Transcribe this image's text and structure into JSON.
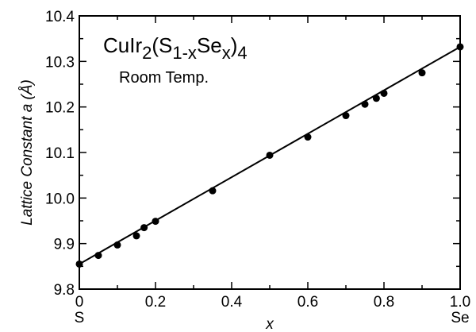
{
  "chart_data": {
    "type": "scatter",
    "xlabel": "x",
    "ylabel": "Lattice Constant  a (Å)",
    "xlim": [
      0,
      1.0
    ],
    "ylim": [
      9.8,
      10.4
    ],
    "x_ticks": [
      "0",
      "0.2",
      "0.4",
      "0.6",
      "0.8",
      "1.0"
    ],
    "y_ticks": [
      "9.8",
      "9.9",
      "10.0",
      "10.1",
      "10.2",
      "10.3",
      "10.4"
    ],
    "x_end_labels": {
      "left": "S",
      "right": "Se"
    },
    "annotation": {
      "formula": {
        "base": "CuIr",
        "s1": "2",
        "open": "(S",
        "s2": "1-x",
        "mid": "Se",
        "s3": "x",
        "close": ")",
        "s4": "4"
      },
      "condition": "Room Temp."
    },
    "series": [
      {
        "points": [
          {
            "x": 0.0,
            "y": 9.855
          },
          {
            "x": 0.05,
            "y": 9.874
          },
          {
            "x": 0.1,
            "y": 9.897
          },
          {
            "x": 0.15,
            "y": 9.917
          },
          {
            "x": 0.17,
            "y": 9.935
          },
          {
            "x": 0.2,
            "y": 9.949
          },
          {
            "x": 0.35,
            "y": 10.016
          },
          {
            "x": 0.5,
            "y": 10.094
          },
          {
            "x": 0.6,
            "y": 10.134
          },
          {
            "x": 0.7,
            "y": 10.181
          },
          {
            "x": 0.75,
            "y": 10.206
          },
          {
            "x": 0.78,
            "y": 10.219
          },
          {
            "x": 0.8,
            "y": 10.23
          },
          {
            "x": 0.9,
            "y": 10.275
          },
          {
            "x": 1.0,
            "y": 10.332
          }
        ]
      }
    ],
    "fit_line": {
      "x": [
        0,
        1.0
      ],
      "y": [
        9.855,
        10.332
      ]
    },
    "grid": false,
    "legend": "none"
  }
}
